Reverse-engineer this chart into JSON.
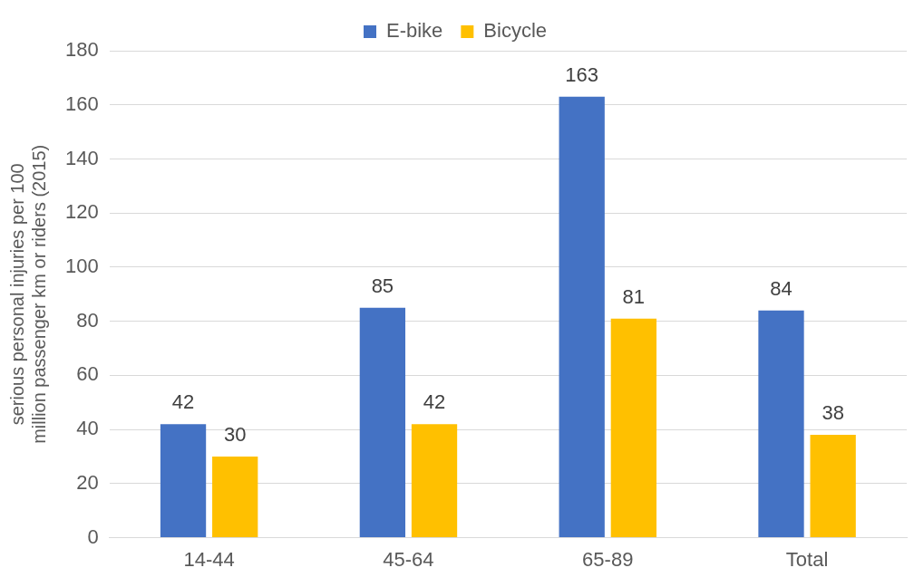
{
  "chart_data": {
    "type": "bar",
    "ylabel": "serious personal injuries per 100 million passenger km or riders (2015)",
    "categories": [
      "14-44",
      "45-64",
      "65-89",
      "Total"
    ],
    "series": [
      {
        "name": "E-bike",
        "color": "#4472c4",
        "values": [
          42,
          85,
          163,
          84
        ]
      },
      {
        "name": "Bicycle",
        "color": "#ffc000",
        "values": [
          30,
          42,
          81,
          38
        ]
      }
    ],
    "ylim": [
      0,
      180
    ],
    "yticks": [
      0,
      20,
      40,
      60,
      80,
      100,
      120,
      140,
      160,
      180
    ],
    "grid": "y",
    "legend": "top",
    "data_labels": true
  }
}
